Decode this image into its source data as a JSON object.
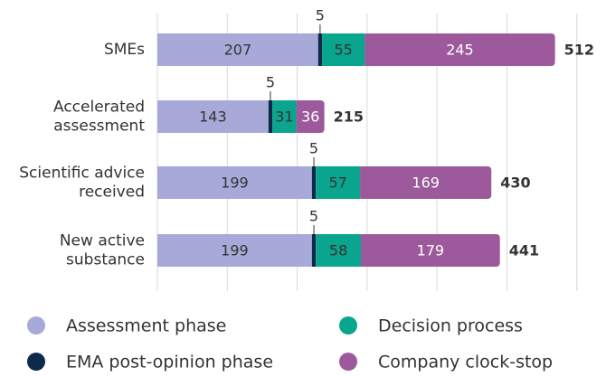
{
  "chart_data": {
    "type": "stacked-bar-horizontal",
    "categories": [
      "SMEs",
      "Accelerated\nassessment",
      "Scientific advice\nreceived",
      "New active\nsubstance"
    ],
    "series": [
      {
        "name": "Assessment phase",
        "color": "#a7aad8",
        "values": [
          207,
          143,
          199,
          199
        ]
      },
      {
        "name": "EMA post-opinion phase",
        "color": "#0d2a4a",
        "values": [
          5,
          5,
          5,
          5
        ]
      },
      {
        "name": "Decision process",
        "color": "#0aa58e",
        "values": [
          55,
          31,
          57,
          58
        ]
      },
      {
        "name": "Company clock-stop",
        "color": "#9c5a9c",
        "values": [
          245,
          36,
          169,
          179
        ]
      }
    ],
    "totals": [
      512,
      215,
      430,
      441
    ],
    "xlim": [
      0,
      545
    ],
    "xticks": [
      0,
      90,
      180,
      270,
      360,
      450,
      540
    ],
    "grid": true
  }
}
